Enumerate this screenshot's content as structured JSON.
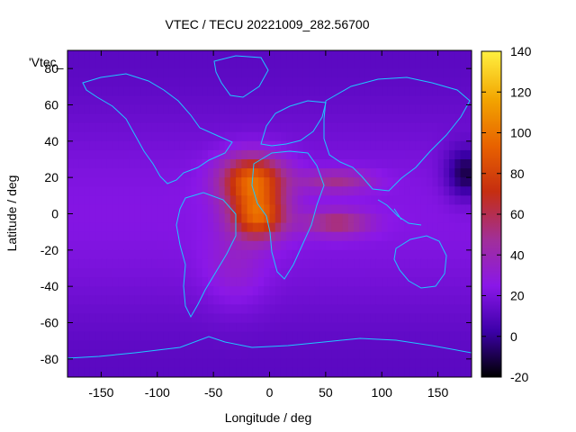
{
  "chart_data": {
    "type": "heatmap",
    "title": "VTEC / TECU 20221009_282.56700",
    "xlabel": "Longitude / deg",
    "ylabel": "Latitude / deg",
    "series_label": "'Vtec_",
    "xlim": [
      -180,
      180
    ],
    "ylim": [
      -90,
      90
    ],
    "x_ticks": [
      -150,
      -100,
      -50,
      0,
      50,
      100,
      150
    ],
    "y_ticks": [
      -80,
      -60,
      -40,
      -20,
      0,
      20,
      40,
      60,
      80
    ],
    "colorbar": {
      "range": [
        -20,
        140
      ],
      "ticks": [
        -20,
        0,
        20,
        40,
        60,
        80,
        100,
        120,
        140
      ],
      "palette": [
        "#000000",
        "#3c00a8",
        "#8a17e8",
        "#a12f9a",
        "#c62e10",
        "#e86200",
        "#f2a400",
        "#fff040"
      ]
    },
    "field": {
      "background_value": 22,
      "features": [
        {
          "name": "american-crest",
          "lon": -15,
          "lat": 18,
          "value": 95
        },
        {
          "name": "african-crest",
          "lon": -10,
          "lat": -2,
          "value": 85
        },
        {
          "name": "indian-ocean-plume",
          "lon": 60,
          "lat": -5,
          "value": 55
        },
        {
          "name": "arabian-plume",
          "lon": 60,
          "lat": 18,
          "value": 50
        },
        {
          "name": "southern-lobe",
          "lon": -30,
          "lat": -30,
          "value": 35
        },
        {
          "name": "west-pacific-trough",
          "lon": 175,
          "lat": 22,
          "value": -10
        }
      ]
    }
  }
}
